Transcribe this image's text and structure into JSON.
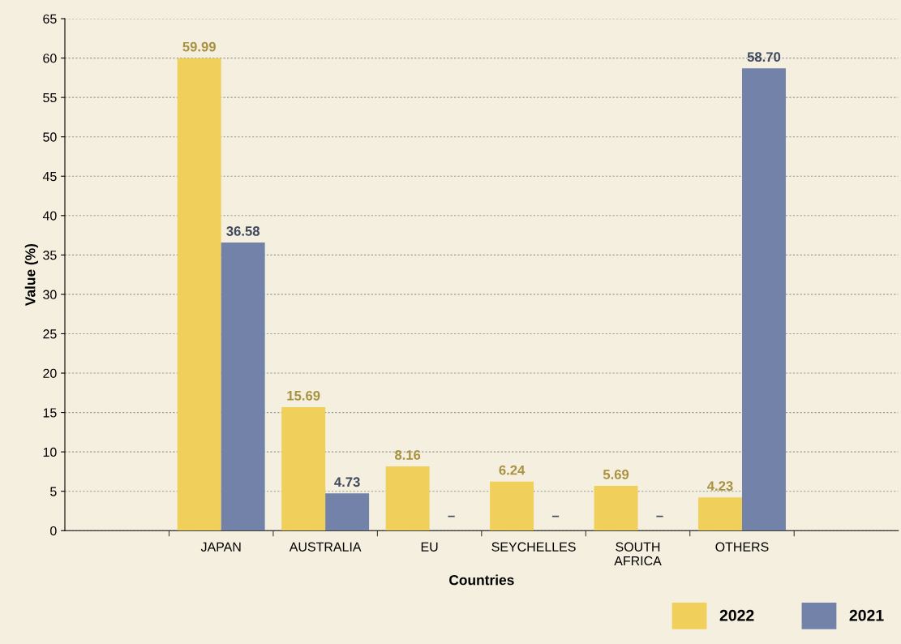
{
  "chart_data": {
    "type": "bar",
    "xlabel": "Countries",
    "ylabel": "Value (%)",
    "categories": [
      null,
      "JAPAN",
      "AUSTRALIA",
      "EU",
      "SEYCHELLES",
      "SOUTH\nAFRICA",
      "OTHERS",
      null
    ],
    "series": [
      {
        "name": "2022",
        "color": "#f0cf5a",
        "values": [
          null,
          59.99,
          15.69,
          8.16,
          6.24,
          5.69,
          4.23,
          null
        ],
        "value_labels": [
          null,
          "59.99",
          "15.69",
          "8.16",
          "6.24",
          "5.69",
          "4.23",
          null
        ]
      },
      {
        "name": "2021",
        "color": "#7282a8",
        "values": [
          null,
          36.58,
          4.73,
          null,
          null,
          null,
          58.7,
          null
        ],
        "value_labels": [
          null,
          "36.58",
          "4.73",
          "–",
          "–",
          "–",
          "58.70",
          null
        ]
      }
    ],
    "ylim": [
      0,
      65
    ],
    "yticks": [
      0,
      5,
      10,
      15,
      20,
      25,
      30,
      35,
      40,
      45,
      50,
      55,
      60,
      65
    ],
    "grid": "y",
    "legend": "bottom right"
  }
}
